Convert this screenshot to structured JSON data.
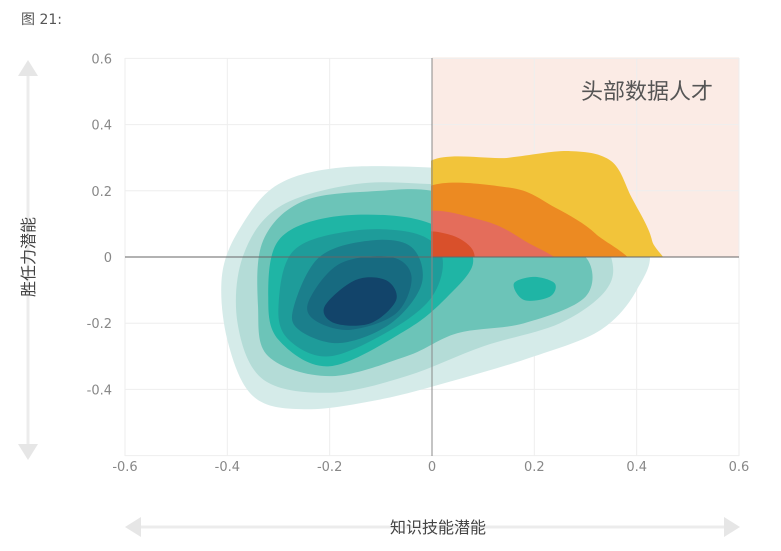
{
  "figure_label": "图 21:",
  "chart_data": {
    "type": "contour",
    "xlabel": "知识技能潜能",
    "ylabel": "胜任力潜能",
    "xlim": [
      -0.6,
      0.6
    ],
    "ylim": [
      -0.6,
      0.6
    ],
    "xticks": [
      "-0.6",
      "-0.4",
      "-0.2",
      "0",
      "0.2",
      "0.4",
      "0.6"
    ],
    "yticks": [
      "0.6",
      "0.4",
      "0.2",
      "0",
      "-0.2",
      "-0.4"
    ],
    "grid": true,
    "highlight_region": {
      "label": "头部数据人才",
      "x": [
        0,
        0.6
      ],
      "y": [
        0,
        0.6
      ],
      "color": "#fbebe5"
    },
    "teal_levels": [
      {
        "color": "#d5ebe9",
        "points": [
          [
            -0.4,
            -0.25
          ],
          [
            -0.41,
            -0.05
          ],
          [
            -0.37,
            0.1
          ],
          [
            -0.3,
            0.22
          ],
          [
            -0.18,
            0.27
          ],
          [
            0,
            0.27
          ],
          [
            0.1,
            0.25
          ],
          [
            0.3,
            0.15
          ],
          [
            0.42,
            0.03
          ],
          [
            0.4,
            -0.1
          ],
          [
            0.33,
            -0.22
          ],
          [
            0.2,
            -0.3
          ],
          [
            0.05,
            -0.37
          ],
          [
            -0.1,
            -0.43
          ],
          [
            -0.25,
            -0.46
          ],
          [
            -0.35,
            -0.42
          ]
        ]
      },
      {
        "color": "#b4dcd7",
        "points": [
          [
            -0.38,
            -0.2
          ],
          [
            -0.37,
            0
          ],
          [
            -0.3,
            0.15
          ],
          [
            -0.15,
            0.22
          ],
          [
            0,
            0.22
          ],
          [
            0.15,
            0.2
          ],
          [
            0.3,
            0.12
          ],
          [
            0.35,
            0
          ],
          [
            0.34,
            -0.1
          ],
          [
            0.25,
            -0.2
          ],
          [
            0.1,
            -0.27
          ],
          [
            -0.05,
            -0.36
          ],
          [
            -0.2,
            -0.41
          ],
          [
            -0.33,
            -0.37
          ]
        ]
      },
      {
        "color": "#6cc4b8",
        "points": [
          [
            -0.34,
            -0.15
          ],
          [
            -0.33,
            0.05
          ],
          [
            -0.25,
            0.17
          ],
          [
            -0.1,
            0.2
          ],
          [
            0,
            0.2
          ],
          [
            0.1,
            0.15
          ],
          [
            0.2,
            0.05
          ],
          [
            0.3,
            0
          ],
          [
            0.3,
            -0.12
          ],
          [
            0.18,
            -0.2
          ],
          [
            0.05,
            -0.23
          ],
          [
            -0.05,
            -0.3
          ],
          [
            -0.2,
            -0.36
          ],
          [
            -0.32,
            -0.3
          ]
        ]
      },
      {
        "color": "#1fb5a5",
        "points": [
          [
            0.16,
            -0.08
          ],
          [
            0.2,
            -0.06
          ],
          [
            0.24,
            -0.08
          ],
          [
            0.23,
            -0.12
          ],
          [
            0.18,
            -0.13
          ]
        ]
      },
      {
        "color": "#1fb5a5",
        "points": [
          [
            -0.32,
            -0.12
          ],
          [
            -0.3,
            0.05
          ],
          [
            -0.2,
            0.12
          ],
          [
            -0.05,
            0.12
          ],
          [
            0.05,
            0.06
          ],
          [
            0.08,
            -0.02
          ],
          [
            0.03,
            -0.12
          ],
          [
            -0.05,
            -0.22
          ],
          [
            -0.2,
            -0.33
          ],
          [
            -0.3,
            -0.25
          ]
        ]
      },
      {
        "color": "#1e9c9a",
        "points": [
          [
            -0.3,
            -0.15
          ],
          [
            -0.27,
            0.02
          ],
          [
            -0.15,
            0.08
          ],
          [
            -0.03,
            0.07
          ],
          [
            0.02,
            0
          ],
          [
            0,
            -0.12
          ],
          [
            -0.08,
            -0.22
          ],
          [
            -0.2,
            -0.3
          ],
          [
            -0.28,
            -0.25
          ]
        ]
      },
      {
        "color": "#1b7f8c",
        "points": [
          [
            -0.27,
            -0.15
          ],
          [
            -0.22,
            0
          ],
          [
            -0.12,
            0.05
          ],
          [
            -0.04,
            0.03
          ],
          [
            -0.02,
            -0.08
          ],
          [
            -0.08,
            -0.2
          ],
          [
            -0.18,
            -0.26
          ],
          [
            -0.26,
            -0.22
          ]
        ]
      },
      {
        "color": "#176a80",
        "points": [
          [
            -0.24,
            -0.13
          ],
          [
            -0.18,
            -0.02
          ],
          [
            -0.08,
            0.0
          ],
          [
            -0.04,
            -0.06
          ],
          [
            -0.07,
            -0.17
          ],
          [
            -0.16,
            -0.22
          ],
          [
            -0.23,
            -0.19
          ]
        ]
      },
      {
        "color": "#12446a",
        "points": [
          [
            -0.21,
            -0.15
          ],
          [
            -0.15,
            -0.07
          ],
          [
            -0.09,
            -0.07
          ],
          [
            -0.07,
            -0.13
          ],
          [
            -0.12,
            -0.2
          ],
          [
            -0.19,
            -0.2
          ]
        ]
      }
    ],
    "warm_levels": [
      {
        "color": "#f2c43a",
        "points": [
          [
            -0.02,
            0.27
          ],
          [
            0.15,
            0.3
          ],
          [
            0.27,
            0.32
          ],
          [
            0.35,
            0.29
          ],
          [
            0.39,
            0.18
          ],
          [
            0.43,
            0.05
          ],
          [
            0.42,
            -0.05
          ],
          [
            -0.02,
            -0.05
          ]
        ]
      },
      {
        "color": "#ec8a22",
        "points": [
          [
            -0.02,
            0.2
          ],
          [
            0.15,
            0.21
          ],
          [
            0.24,
            0.15
          ],
          [
            0.32,
            0.07
          ],
          [
            0.37,
            -0.04
          ],
          [
            -0.02,
            -0.05
          ]
        ]
      },
      {
        "color": "#e46d5b",
        "points": [
          [
            -0.02,
            0.13
          ],
          [
            0.1,
            0.11
          ],
          [
            0.18,
            0.05
          ],
          [
            0.24,
            -0.03
          ],
          [
            -0.02,
            -0.05
          ]
        ]
      },
      {
        "color": "#d9502b",
        "points": [
          [
            -0.02,
            0.07
          ],
          [
            0.04,
            0.065
          ],
          [
            0.08,
            0.02
          ],
          [
            0.07,
            -0.03
          ],
          [
            -0.02,
            -0.03
          ]
        ]
      }
    ]
  }
}
